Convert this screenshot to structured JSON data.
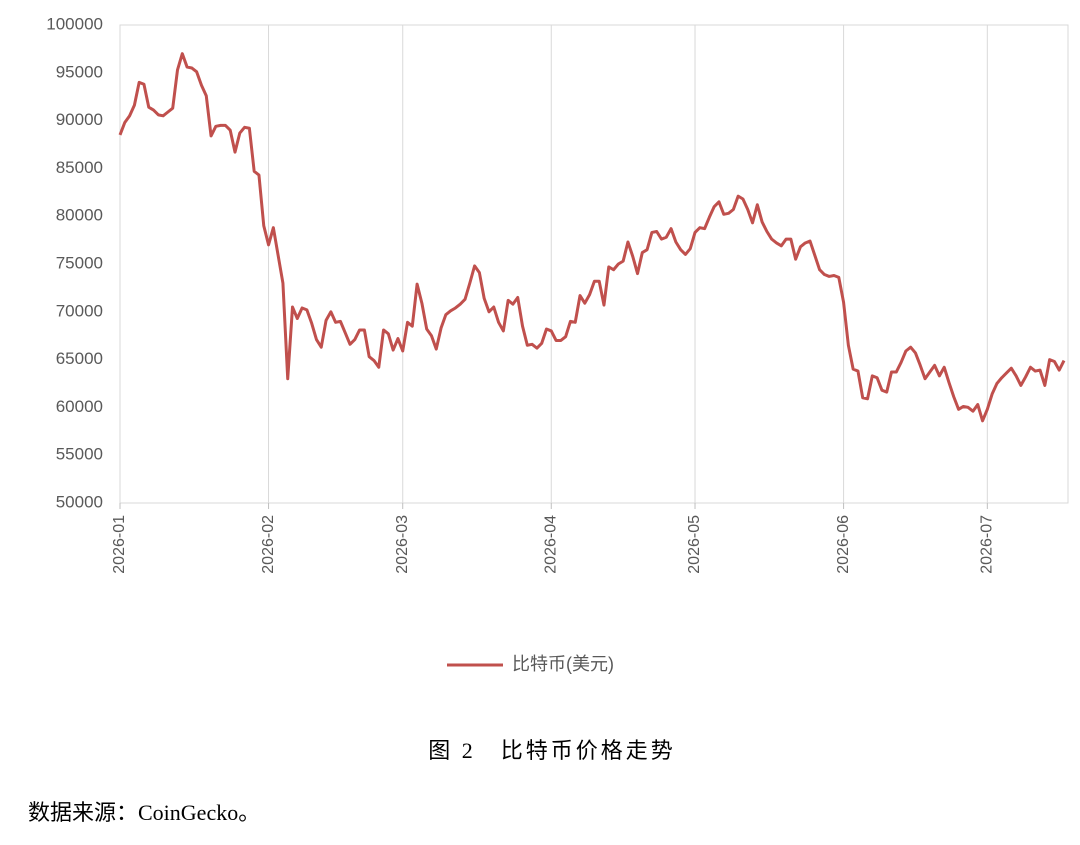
{
  "chart_data": {
    "type": "line",
    "categories": [
      "2026-01",
      null,
      null,
      null,
      null,
      null,
      null,
      null,
      null,
      null,
      null,
      null,
      null,
      null,
      null,
      null,
      null,
      null,
      null,
      null,
      null,
      null,
      null,
      null,
      null,
      null,
      null,
      null,
      null,
      null,
      null,
      "2026-02",
      null,
      null,
      null,
      null,
      null,
      null,
      null,
      null,
      null,
      null,
      null,
      null,
      null,
      null,
      null,
      null,
      null,
      null,
      null,
      null,
      null,
      null,
      null,
      null,
      null,
      null,
      null,
      "2026-03",
      null,
      null,
      null,
      null,
      null,
      null,
      null,
      null,
      null,
      null,
      null,
      null,
      null,
      null,
      null,
      null,
      null,
      null,
      null,
      null,
      null,
      null,
      null,
      null,
      null,
      null,
      null,
      null,
      null,
      null,
      "2026-04",
      null,
      null,
      null,
      null,
      null,
      null,
      null,
      null,
      null,
      null,
      null,
      null,
      null,
      null,
      null,
      null,
      null,
      null,
      null,
      null,
      null,
      null,
      null,
      null,
      null,
      null,
      null,
      null,
      null,
      "2026-05",
      null,
      null,
      null,
      null,
      null,
      null,
      null,
      null,
      null,
      null,
      null,
      null,
      null,
      null,
      null,
      null,
      null,
      null,
      null,
      null,
      null,
      null,
      null,
      null,
      null,
      null,
      null,
      null,
      null,
      null,
      "2026-06",
      null,
      null,
      null,
      null,
      null,
      null,
      null,
      null,
      null,
      null,
      null,
      null,
      null,
      null,
      null,
      null,
      null,
      null,
      null,
      null,
      null,
      null,
      null,
      null,
      null,
      null,
      null,
      null,
      null,
      "2026-07",
      null,
      null,
      null,
      null,
      null,
      null,
      null,
      null,
      null,
      null,
      null,
      null,
      null,
      null,
      null,
      null
    ],
    "series": [
      {
        "name": "比特币(美元)",
        "color": "#c0504d",
        "values": [
          88500,
          89800,
          90500,
          91600,
          94000,
          93800,
          91400,
          91100,
          90600,
          90500,
          90900,
          91300,
          95300,
          97000,
          95600,
          95500,
          95100,
          93700,
          92600,
          88400,
          89400,
          89500,
          89500,
          89000,
          86700,
          88700,
          89300,
          89200,
          84700,
          84300,
          79000,
          77000,
          78800,
          75900,
          73000,
          63000,
          70500,
          69300,
          70400,
          70200,
          68800,
          67100,
          66300,
          69100,
          70000,
          68900,
          69000,
          67800,
          66600,
          67100,
          68100,
          68100,
          65300,
          64900,
          64200,
          68100,
          67700,
          66000,
          67200,
          65900,
          68900,
          68500,
          72900,
          70900,
          68200,
          67500,
          66100,
          68300,
          69700,
          70100,
          70400,
          70800,
          71300,
          73000,
          74800,
          74100,
          71400,
          70000,
          70500,
          68900,
          68000,
          71200,
          70800,
          71500,
          68500,
          66500,
          66600,
          66200,
          66700,
          68200,
          68000,
          67000,
          67000,
          67400,
          69000,
          68900,
          71700,
          70900,
          71800,
          73200,
          73200,
          70700,
          74700,
          74400,
          75000,
          75300,
          77300,
          75800,
          74000,
          76200,
          76500,
          78300,
          78400,
          77600,
          77800,
          78700,
          77300,
          76500,
          76000,
          76600,
          78300,
          78800,
          78700,
          79900,
          81000,
          81500,
          80200,
          80300,
          80700,
          82100,
          81800,
          80700,
          79300,
          81200,
          79400,
          78400,
          77600,
          77200,
          76900,
          77600,
          77600,
          75500,
          76800,
          77200,
          77400,
          75900,
          74400,
          73900,
          73700,
          73800,
          73600,
          71000,
          66500,
          64000,
          63800,
          61000,
          60900,
          63300,
          63100,
          61800,
          61600,
          63700,
          63700,
          64700,
          65900,
          66300,
          65700,
          64400,
          63000,
          63700,
          64400,
          63300,
          64200,
          62600,
          61100,
          59800,
          60100,
          60000,
          59600,
          60300,
          58600,
          59800,
          61400,
          62500,
          63100,
          63600,
          64100,
          63300,
          62300,
          63200,
          64200,
          63800,
          63900,
          62300,
          65000,
          64800,
          63900,
          64900
        ]
      }
    ],
    "ylim": [
      50000,
      100000
    ],
    "yticks": [
      50000,
      55000,
      60000,
      65000,
      70000,
      75000,
      80000,
      85000,
      90000,
      95000,
      100000
    ],
    "grid": true,
    "legend": "bottom"
  },
  "caption": "图 2　比特币价格走势",
  "source": "数据来源：CoinGecko。"
}
